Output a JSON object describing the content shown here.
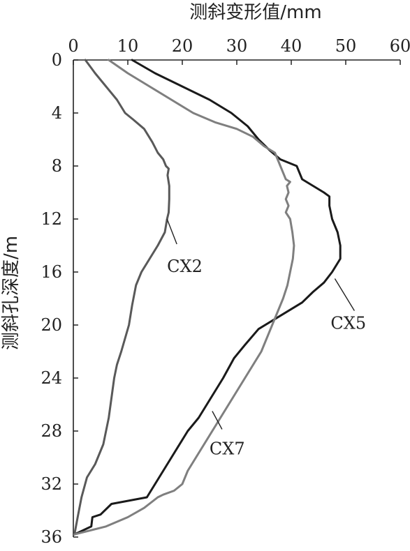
{
  "chart_data": {
    "type": "line",
    "title": "",
    "xlabel": "测斜变形值/mm",
    "ylabel": "测斜孔深度/m",
    "xlim": [
      0,
      60
    ],
    "ylim": [
      36,
      0
    ],
    "x_axis_position": "top",
    "y_axis_inverted": true,
    "grid": false,
    "legend": "none (series labeled inline with leader lines)",
    "x_ticks": [
      0,
      10,
      20,
      30,
      40,
      50,
      60
    ],
    "y_ticks": [
      0,
      4,
      8,
      12,
      16,
      20,
      24,
      28,
      32,
      36
    ],
    "series": [
      {
        "name": "CX2",
        "color": "#595959",
        "points": [
          [
            2.2,
            0
          ],
          [
            4,
            1
          ],
          [
            6,
            2
          ],
          [
            8,
            3
          ],
          [
            9.5,
            4
          ],
          [
            11,
            4.5
          ],
          [
            13,
            5.2
          ],
          [
            14.5,
            6.2
          ],
          [
            15.5,
            7
          ],
          [
            16.5,
            7.5
          ],
          [
            17,
            8
          ],
          [
            17.5,
            8.2
          ],
          [
            17.3,
            8.7
          ],
          [
            17.6,
            9.5
          ],
          [
            17.6,
            10.5
          ],
          [
            17.5,
            11.5
          ],
          [
            17.2,
            12
          ],
          [
            16.8,
            13
          ],
          [
            15.5,
            14
          ],
          [
            14,
            15
          ],
          [
            12.5,
            16
          ],
          [
            11.5,
            17
          ],
          [
            10.8,
            18.5
          ],
          [
            10.2,
            20
          ],
          [
            9.5,
            21
          ],
          [
            8.8,
            22
          ],
          [
            8,
            23
          ],
          [
            7.5,
            24
          ],
          [
            7,
            25.5
          ],
          [
            6.5,
            27
          ],
          [
            5.5,
            29
          ],
          [
            4,
            30.5
          ],
          [
            2.5,
            31.5
          ],
          [
            1.5,
            33
          ],
          [
            0.8,
            34.5
          ],
          [
            0.2,
            35.8
          ]
        ]
      },
      {
        "name": "CX5",
        "color": "#1a1a1a",
        "points": [
          [
            10.8,
            0
          ],
          [
            15,
            1
          ],
          [
            20,
            2
          ],
          [
            25,
            3
          ],
          [
            29,
            4
          ],
          [
            32,
            5
          ],
          [
            34,
            6
          ],
          [
            36,
            6.8
          ],
          [
            38,
            7.5
          ],
          [
            41,
            8
          ],
          [
            42,
            9
          ],
          [
            44,
            9.5
          ],
          [
            46,
            10
          ],
          [
            47,
            10.3
          ],
          [
            47,
            11
          ],
          [
            47.5,
            12
          ],
          [
            48.5,
            13
          ],
          [
            49,
            14
          ],
          [
            49,
            15
          ],
          [
            47.5,
            16
          ],
          [
            46,
            16.8
          ],
          [
            44,
            17.5
          ],
          [
            42,
            18.3
          ],
          [
            38,
            19.3
          ],
          [
            34,
            20.3
          ],
          [
            31.5,
            21.5
          ],
          [
            29.5,
            22.5
          ],
          [
            27.5,
            24
          ],
          [
            26,
            25
          ],
          [
            24.5,
            26
          ],
          [
            23,
            27
          ],
          [
            21,
            28
          ],
          [
            19.5,
            29
          ],
          [
            18,
            30
          ],
          [
            16.5,
            31
          ],
          [
            15,
            32
          ],
          [
            13.5,
            33
          ],
          [
            7,
            33.5
          ],
          [
            5,
            34.3
          ],
          [
            3.5,
            34.5
          ],
          [
            3.3,
            35.2
          ],
          [
            0.2,
            35.8
          ]
        ]
      },
      {
        "name": "CX7",
        "color": "#7f7f7f",
        "points": [
          [
            6.5,
            0
          ],
          [
            10,
            1
          ],
          [
            14,
            2
          ],
          [
            18,
            3
          ],
          [
            22,
            4
          ],
          [
            26,
            4.7
          ],
          [
            30,
            5.2
          ],
          [
            33,
            5.8
          ],
          [
            35,
            6.5
          ],
          [
            37,
            7
          ],
          [
            38,
            8
          ],
          [
            39,
            9
          ],
          [
            39.8,
            9.2
          ],
          [
            39.2,
            9.5
          ],
          [
            39.5,
            10
          ],
          [
            39,
            10.5
          ],
          [
            39.5,
            11
          ],
          [
            39,
            11.5
          ],
          [
            39.8,
            12
          ],
          [
            40.2,
            13
          ],
          [
            40.5,
            14
          ],
          [
            40.3,
            15
          ],
          [
            39.8,
            16
          ],
          [
            39.3,
            17
          ],
          [
            38.5,
            18
          ],
          [
            37.5,
            19
          ],
          [
            36.5,
            20
          ],
          [
            35.5,
            21
          ],
          [
            34.5,
            22
          ],
          [
            33,
            23
          ],
          [
            31.5,
            24
          ],
          [
            30,
            25
          ],
          [
            28.5,
            26
          ],
          [
            27,
            27
          ],
          [
            25.5,
            28
          ],
          [
            24,
            29
          ],
          [
            22.5,
            30
          ],
          [
            21,
            31
          ],
          [
            20,
            32
          ],
          [
            18.5,
            32.5
          ],
          [
            16.5,
            32.8
          ],
          [
            15.5,
            33
          ],
          [
            13,
            33.8
          ],
          [
            10,
            34.5
          ],
          [
            6,
            35.2
          ],
          [
            0.2,
            35.8
          ]
        ]
      }
    ],
    "annotations": [
      {
        "text": "CX2",
        "series": "CX2",
        "anchor": [
          17.2,
          12
        ]
      },
      {
        "text": "CX5",
        "series": "CX5",
        "anchor": [
          48,
          16.5
        ]
      },
      {
        "text": "CX7",
        "series": "CX7",
        "anchor": [
          25.5,
          26.5
        ]
      }
    ]
  }
}
